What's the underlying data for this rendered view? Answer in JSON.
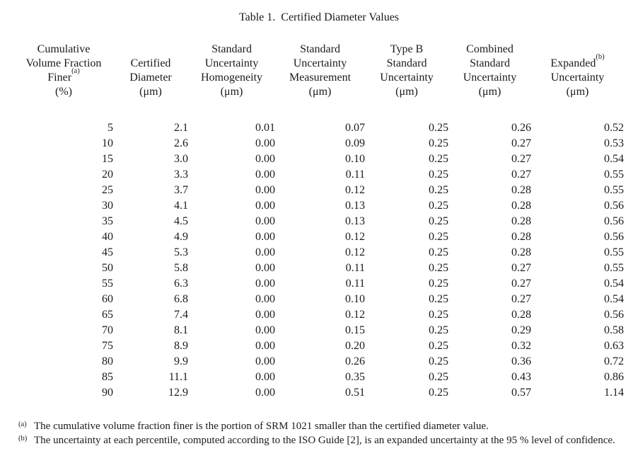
{
  "page": {
    "title": "Table 1.  Certified Diameter Values"
  },
  "table": {
    "header": {
      "columns": [
        {
          "name": "cumulative-volume-fraction-finer",
          "lines": [
            "Cumulative",
            "Volume Fraction",
            "Finer^(a)",
            "(%)"
          ]
        },
        {
          "name": "certified-diameter",
          "lines": [
            "Certified",
            "Diameter",
            "(μm)"
          ]
        },
        {
          "name": "standard-uncertainty-homogeneity",
          "lines": [
            "Standard",
            "Uncertainty",
            "Homogeneity",
            "(μm)"
          ]
        },
        {
          "name": "standard-uncertainty-measurement",
          "lines": [
            "Standard",
            "Uncertainty",
            "Measurement",
            "(μm)"
          ]
        },
        {
          "name": "type-b-standard-uncertainty",
          "lines": [
            "Type B",
            "Standard",
            "Uncertainty",
            "(μm)"
          ]
        },
        {
          "name": "combined-standard-uncertainty",
          "lines": [
            "Combined",
            "Standard",
            "Uncertainty",
            "(μm)"
          ]
        },
        {
          "name": "expanded-uncertainty",
          "lines": [
            "Expanded^(b)",
            "Uncertainty",
            "(μm)"
          ]
        }
      ]
    },
    "rows": [
      [
        "5",
        "2.1",
        "0.01",
        "0.07",
        "0.25",
        "0.26",
        "0.52"
      ],
      [
        "10",
        "2.6",
        "0.00",
        "0.09",
        "0.25",
        "0.27",
        "0.53"
      ],
      [
        "15",
        "3.0",
        "0.00",
        "0.10",
        "0.25",
        "0.27",
        "0.54"
      ],
      [
        "20",
        "3.3",
        "0.00",
        "0.11",
        "0.25",
        "0.27",
        "0.55"
      ],
      [
        "25",
        "3.7",
        "0.00",
        "0.12",
        "0.25",
        "0.28",
        "0.55"
      ],
      [
        "30",
        "4.1",
        "0.00",
        "0.13",
        "0.25",
        "0.28",
        "0.56"
      ],
      [
        "35",
        "4.5",
        "0.00",
        "0.13",
        "0.25",
        "0.28",
        "0.56"
      ],
      [
        "40",
        "4.9",
        "0.00",
        "0.12",
        "0.25",
        "0.28",
        "0.56"
      ],
      [
        "45",
        "5.3",
        "0.00",
        "0.12",
        "0.25",
        "0.28",
        "0.55"
      ],
      [
        "50",
        "5.8",
        "0.00",
        "0.11",
        "0.25",
        "0.27",
        "0.55"
      ],
      [
        "55",
        "6.3",
        "0.00",
        "0.11",
        "0.25",
        "0.27",
        "0.54"
      ],
      [
        "60",
        "6.8",
        "0.00",
        "0.10",
        "0.25",
        "0.27",
        "0.54"
      ],
      [
        "65",
        "7.4",
        "0.00",
        "0.12",
        "0.25",
        "0.28",
        "0.56"
      ],
      [
        "70",
        "8.1",
        "0.00",
        "0.15",
        "0.25",
        "0.29",
        "0.58"
      ],
      [
        "75",
        "8.9",
        "0.00",
        "0.20",
        "0.25",
        "0.32",
        "0.63"
      ],
      [
        "80",
        "9.9",
        "0.00",
        "0.26",
        "0.25",
        "0.36",
        "0.72"
      ],
      [
        "85",
        "11.1",
        "0.00",
        "0.35",
        "0.25",
        "0.43",
        "0.86"
      ],
      [
        "90",
        "12.9",
        "0.00",
        "0.51",
        "0.25",
        "0.57",
        "1.14"
      ]
    ]
  },
  "footnotes": [
    {
      "marker": "(a)",
      "text": "The cumulative volume fraction finer is the portion of SRM 1021 smaller than the certified diameter value."
    },
    {
      "marker": "(b)",
      "text": "The uncertainty at each percentile, computed according to the ISO Guide [2], is an expanded uncertainty at the 95 % level of confidence."
    }
  ],
  "colors": {
    "text": "#1b1b1b",
    "background": "#ffffff"
  }
}
